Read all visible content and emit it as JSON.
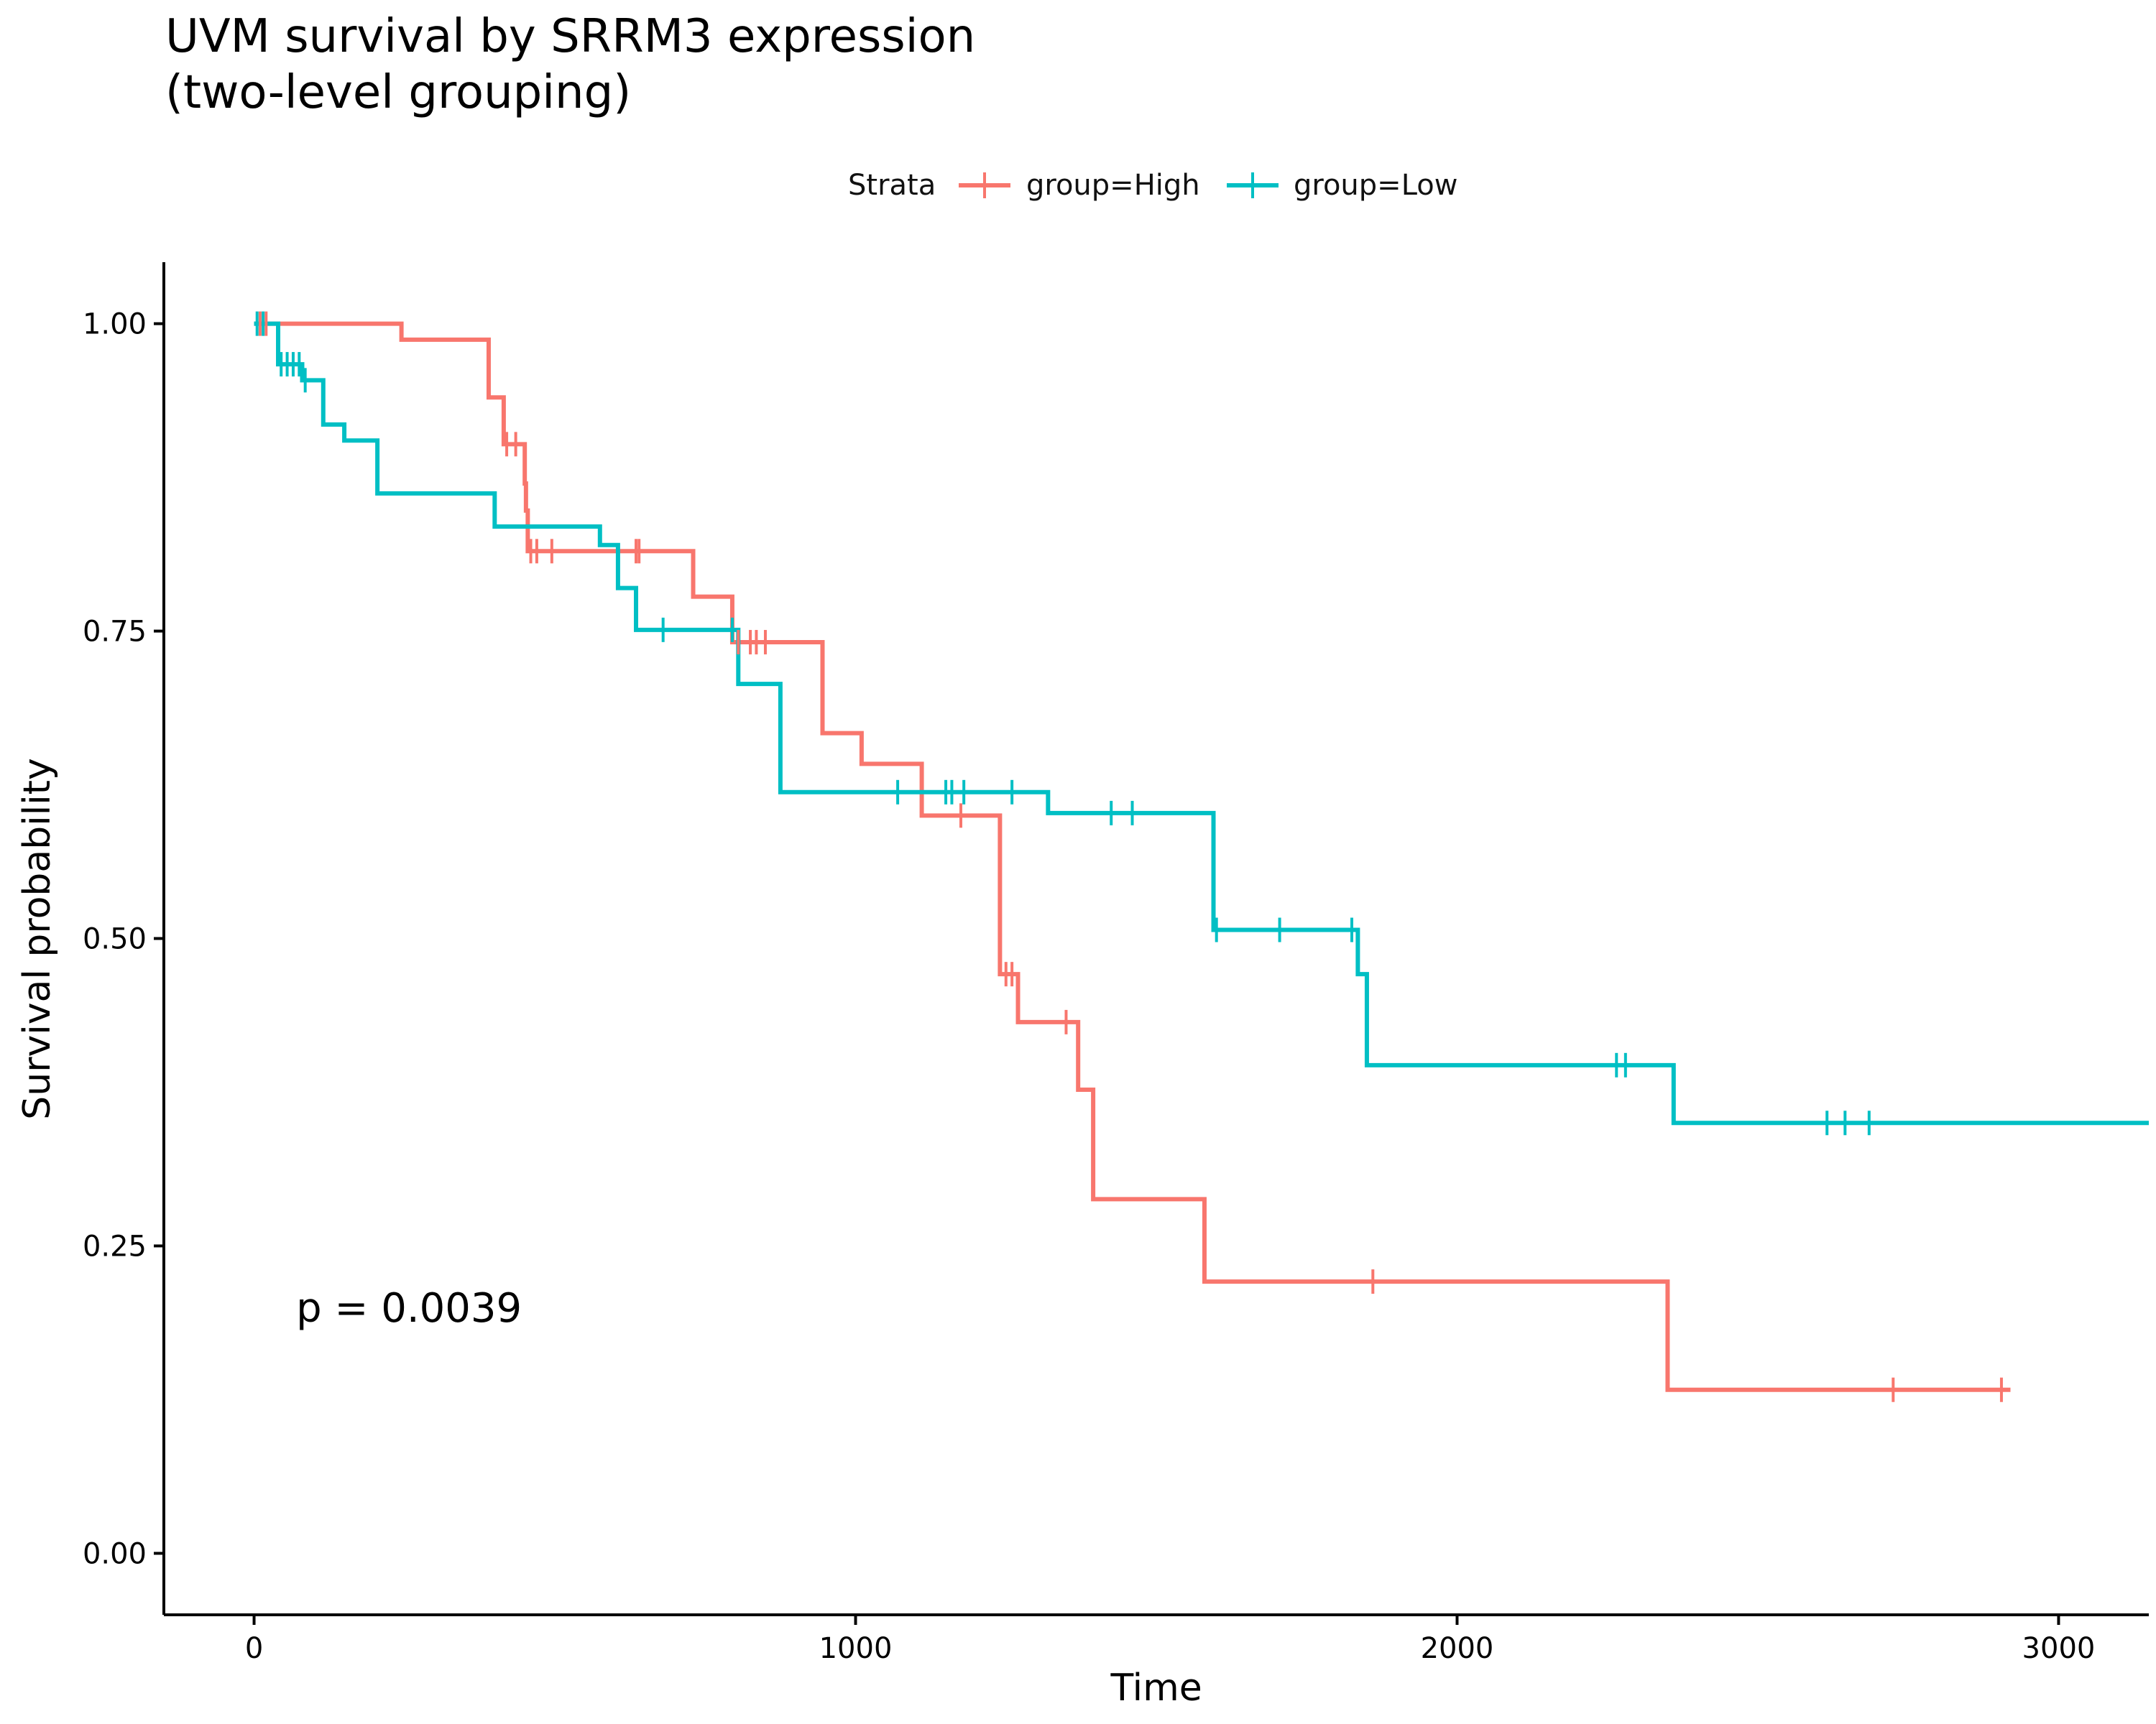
{
  "chart_data": {
    "type": "line",
    "subtype": "kaplan-meier-step",
    "title_lines": [
      "UVM survival by SRRM3 expression",
      "(two-level grouping)"
    ],
    "xlabel": "Time",
    "ylabel": "Survival probability",
    "xlim": [
      -150,
      3150
    ],
    "ylim": [
      -0.05,
      1.05
    ],
    "x_ticks": [
      0,
      1000,
      2000,
      3000
    ],
    "y_ticks": [
      0.0,
      0.25,
      0.5,
      0.75,
      1.0
    ],
    "y_tick_labels": [
      "0.00",
      "0.25",
      "0.50",
      "0.75",
      "1.00"
    ],
    "x_tick_labels": [
      "0",
      "1000",
      "2000",
      "3000"
    ],
    "grid": false,
    "legend": {
      "title": "Strata",
      "placement": "top",
      "entries": [
        {
          "label": "group=High",
          "color": "#F8766D"
        },
        {
          "label": "group=Low",
          "color": "#00BFC4"
        }
      ]
    },
    "annotation": {
      "text": "p = 0.0039",
      "x": 70,
      "y": 0.195
    },
    "series": [
      {
        "label": "group=High",
        "color": "#F8766D",
        "steps": [
          [
            0,
            1.0
          ],
          [
            245,
            0.987
          ],
          [
            390,
            0.94
          ],
          [
            415,
            0.902
          ],
          [
            450,
            0.87
          ],
          [
            452,
            0.848
          ],
          [
            455,
            0.815
          ],
          [
            730,
            0.778
          ],
          [
            795,
            0.741
          ],
          [
            945,
            0.667
          ],
          [
            1010,
            0.642
          ],
          [
            1110,
            0.6
          ],
          [
            1240,
            0.471
          ],
          [
            1270,
            0.432
          ],
          [
            1370,
            0.377
          ],
          [
            1395,
            0.288
          ],
          [
            1580,
            0.221
          ],
          [
            2350,
            0.133
          ]
        ],
        "end_x": 2920,
        "censor": [
          [
            10,
            1.0
          ],
          [
            20,
            1.0
          ],
          [
            420,
            0.902
          ],
          [
            435,
            0.902
          ],
          [
            460,
            0.815
          ],
          [
            470,
            0.815
          ],
          [
            495,
            0.815
          ],
          [
            635,
            0.815
          ],
          [
            640,
            0.815
          ],
          [
            805,
            0.741
          ],
          [
            825,
            0.741
          ],
          [
            835,
            0.741
          ],
          [
            850,
            0.741
          ],
          [
            1175,
            0.6
          ],
          [
            1250,
            0.471
          ],
          [
            1260,
            0.471
          ],
          [
            1350,
            0.432
          ],
          [
            1860,
            0.221
          ],
          [
            2725,
            0.133
          ],
          [
            2905,
            0.133
          ]
        ]
      },
      {
        "label": "group=Low",
        "color": "#00BFC4",
        "steps": [
          [
            0,
            1.0
          ],
          [
            40,
            0.967
          ],
          [
            80,
            0.954
          ],
          [
            115,
            0.918
          ],
          [
            150,
            0.905
          ],
          [
            205,
            0.862
          ],
          [
            400,
            0.835
          ],
          [
            575,
            0.82
          ],
          [
            605,
            0.785
          ],
          [
            635,
            0.751
          ],
          [
            805,
            0.707
          ],
          [
            875,
            0.619
          ],
          [
            1320,
            0.602
          ],
          [
            1595,
            0.507
          ],
          [
            1835,
            0.471
          ],
          [
            1850,
            0.397
          ],
          [
            2360,
            0.35
          ]
        ],
        "end_x": 3150,
        "censor": [
          [
            5,
            1.0
          ],
          [
            15,
            1.0
          ],
          [
            45,
            0.967
          ],
          [
            55,
            0.967
          ],
          [
            65,
            0.967
          ],
          [
            75,
            0.967
          ],
          [
            85,
            0.954
          ],
          [
            680,
            0.751
          ],
          [
            795,
            0.751
          ],
          [
            1070,
            0.619
          ],
          [
            1150,
            0.619
          ],
          [
            1160,
            0.619
          ],
          [
            1180,
            0.619
          ],
          [
            1260,
            0.619
          ],
          [
            1425,
            0.602
          ],
          [
            1460,
            0.602
          ],
          [
            1600,
            0.507
          ],
          [
            1705,
            0.507
          ],
          [
            1825,
            0.507
          ],
          [
            2265,
            0.397
          ],
          [
            2280,
            0.397
          ],
          [
            2615,
            0.35
          ],
          [
            2645,
            0.35
          ],
          [
            2685,
            0.35
          ]
        ]
      }
    ]
  }
}
